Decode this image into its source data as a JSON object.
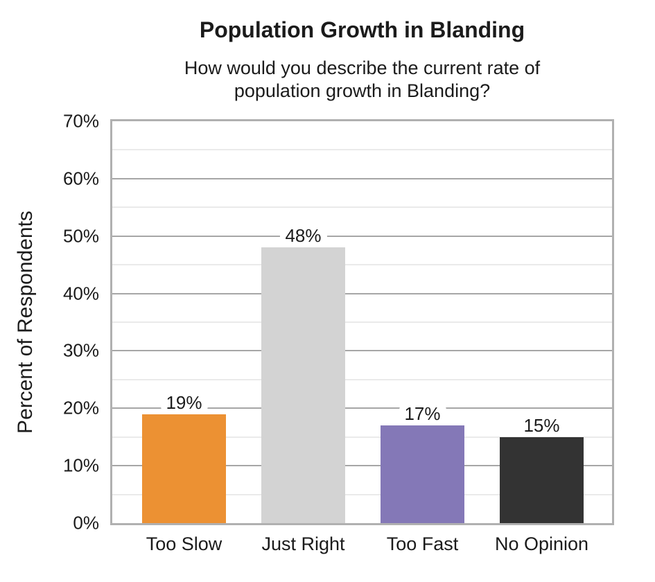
{
  "chart": {
    "subtitle_lines": [
      "How would you describe the current rate of",
      "population growth in Blanding?"
    ]
  },
  "chart_data": {
    "type": "bar",
    "title": "Population Growth in Blanding",
    "subtitle": "How would you describe the current rate of population growth in Blanding?",
    "categories": [
      "Too Slow",
      "Just Right",
      "Too Fast",
      "No Opinion"
    ],
    "values": [
      19,
      48,
      17,
      15
    ],
    "data_labels": [
      "19%",
      "48%",
      "17%",
      "15%"
    ],
    "bar_colors": [
      "#EC9133",
      "#D3D3D3",
      "#8478B7",
      "#333333"
    ],
    "xlabel": "",
    "ylabel": "Percent of Respondents",
    "ylim": [
      0,
      70
    ],
    "y_major_ticks": [
      0,
      10,
      20,
      30,
      40,
      50,
      60,
      70
    ],
    "y_tick_labels": [
      "0%",
      "10%",
      "20%",
      "30%",
      "40%",
      "50%",
      "60%",
      "70%"
    ],
    "y_minor_step": 5,
    "grid": "horizontal major and minor gridlines",
    "legend": "none",
    "style_colors": {
      "plot_border": "#b0b0b0",
      "major_gridline": "#a6a6a6",
      "minor_gridline": "#d4d4d4",
      "text": "#1b1b1b",
      "label_halo": "#ffffff"
    }
  }
}
